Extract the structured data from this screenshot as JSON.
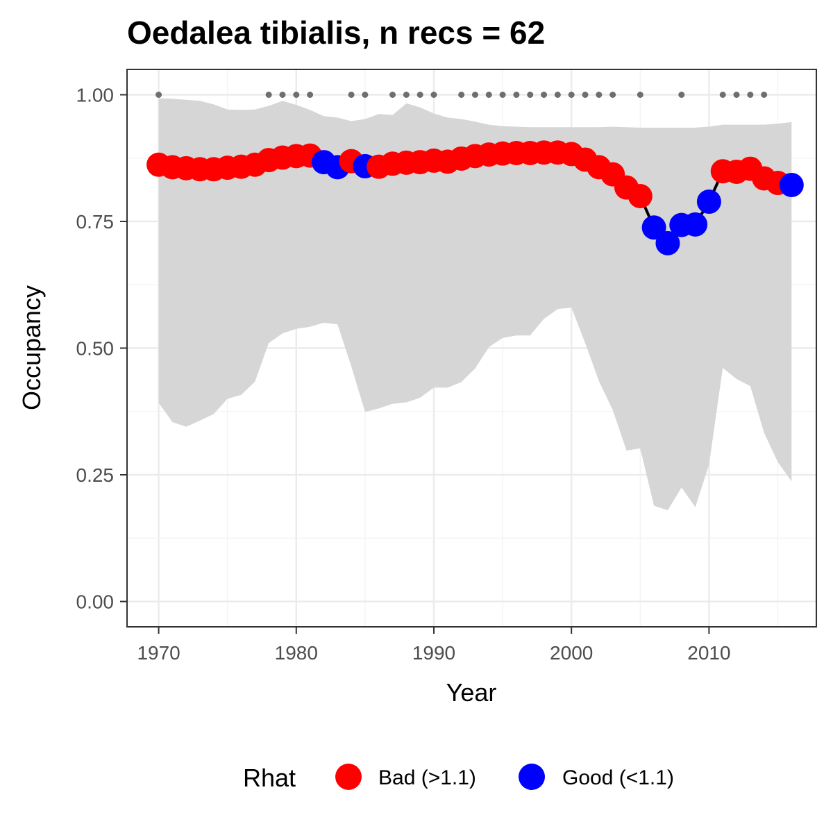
{
  "chart_data": {
    "type": "line",
    "title": "Oedalea tibialis, n recs = 62",
    "xlabel": "Year",
    "ylabel": "Occupancy",
    "xlim": [
      1967.7,
      2017.8
    ],
    "ylim": [
      -0.05,
      1.05
    ],
    "x_ticks": [
      1970,
      1980,
      1990,
      2000,
      2010
    ],
    "x_tick_labels": [
      "1970",
      "1980",
      "1990",
      "2000",
      "2010"
    ],
    "y_ticks": [
      0,
      0.25,
      0.5,
      0.75,
      1.0
    ],
    "y_tick_labels": [
      "0.00",
      "0.25",
      "0.50",
      "0.75",
      "1.00"
    ],
    "grid": true,
    "legend": {
      "title": "Rhat",
      "position": "bottom",
      "entries": [
        {
          "label": "Bad (>1.1)",
          "color": "#ff0000"
        },
        {
          "label": "Good (<1.1)",
          "color": "#0000ff"
        }
      ]
    },
    "colors": {
      "bad": "#ff0000",
      "good": "#0000ff",
      "ribbon": "#d6d6d6",
      "records": "#6e6e6e",
      "line": "#000000"
    },
    "years": [
      1970,
      1971,
      1972,
      1973,
      1974,
      1975,
      1976,
      1977,
      1978,
      1979,
      1980,
      1981,
      1982,
      1983,
      1984,
      1985,
      1986,
      1987,
      1988,
      1989,
      1990,
      1991,
      1992,
      1993,
      1994,
      1995,
      1996,
      1997,
      1998,
      1999,
      2000,
      2001,
      2002,
      2003,
      2004,
      2005,
      2006,
      2007,
      2008,
      2009,
      2010,
      2011,
      2012,
      2013,
      2014,
      2015,
      2016
    ],
    "occupancy": [
      0.862,
      0.857,
      0.855,
      0.853,
      0.853,
      0.856,
      0.858,
      0.862,
      0.871,
      0.876,
      0.879,
      0.88,
      0.867,
      0.857,
      0.869,
      0.859,
      0.858,
      0.864,
      0.866,
      0.867,
      0.87,
      0.868,
      0.874,
      0.879,
      0.882,
      0.884,
      0.885,
      0.885,
      0.886,
      0.886,
      0.883,
      0.872,
      0.857,
      0.843,
      0.817,
      0.8,
      0.738,
      0.707,
      0.743,
      0.744,
      0.789,
      0.849,
      0.848,
      0.854,
      0.835,
      0.826,
      0.822
    ],
    "rhat": [
      "Bad",
      "Bad",
      "Bad",
      "Bad",
      "Bad",
      "Bad",
      "Bad",
      "Bad",
      "Bad",
      "Bad",
      "Bad",
      "Bad",
      "Good",
      "Good",
      "Bad",
      "Good",
      "Bad",
      "Bad",
      "Bad",
      "Bad",
      "Bad",
      "Bad",
      "Bad",
      "Bad",
      "Bad",
      "Bad",
      "Bad",
      "Bad",
      "Bad",
      "Bad",
      "Bad",
      "Bad",
      "Bad",
      "Bad",
      "Bad",
      "Bad",
      "Good",
      "Good",
      "Good",
      "Good",
      "Good",
      "Bad",
      "Bad",
      "Bad",
      "Bad",
      "Bad",
      "Good"
    ],
    "upper_ci": [
      0.993,
      0.992,
      0.99,
      0.988,
      0.981,
      0.971,
      0.97,
      0.971,
      0.978,
      0.988,
      0.98,
      0.97,
      0.958,
      0.955,
      0.948,
      0.952,
      0.962,
      0.96,
      0.983,
      0.975,
      0.963,
      0.955,
      0.952,
      0.947,
      0.941,
      0.938,
      0.937,
      0.936,
      0.936,
      0.936,
      0.936,
      0.936,
      0.936,
      0.937,
      0.936,
      0.935,
      0.935,
      0.935,
      0.935,
      0.935,
      0.937,
      0.941,
      0.941,
      0.941,
      0.941,
      0.943,
      0.946
    ],
    "lower_ci": [
      0.392,
      0.354,
      0.345,
      0.357,
      0.37,
      0.4,
      0.408,
      0.434,
      0.51,
      0.529,
      0.538,
      0.542,
      0.55,
      0.547,
      0.464,
      0.374,
      0.381,
      0.39,
      0.393,
      0.402,
      0.422,
      0.422,
      0.433,
      0.46,
      0.502,
      0.52,
      0.525,
      0.525,
      0.558,
      0.577,
      0.58,
      0.51,
      0.435,
      0.378,
      0.298,
      0.302,
      0.189,
      0.18,
      0.225,
      0.186,
      0.27,
      0.461,
      0.439,
      0.425,
      0.333,
      0.275,
      0.237
    ],
    "record_years": [
      1970,
      1978,
      1979,
      1980,
      1981,
      1984,
      1985,
      1987,
      1988,
      1989,
      1990,
      1992,
      1993,
      1994,
      1995,
      1996,
      1997,
      1998,
      1999,
      2000,
      2001,
      2002,
      2003,
      2005,
      2008,
      2011,
      2012,
      2013,
      2014
    ]
  }
}
